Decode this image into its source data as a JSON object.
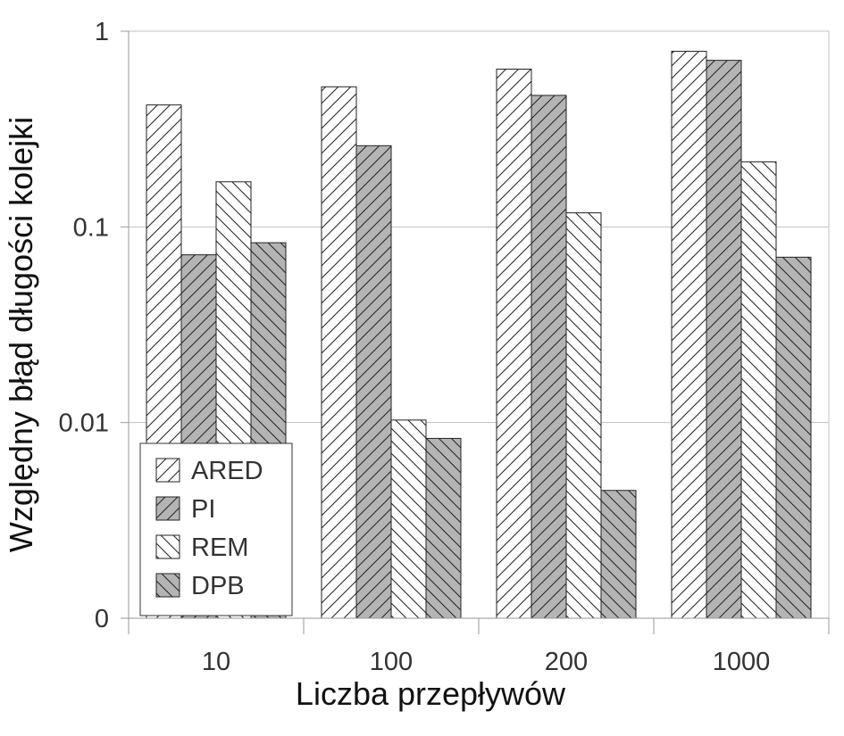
{
  "chart_data": {
    "type": "bar",
    "title": "",
    "xlabel": "Liczba przepływów",
    "ylabel": "Względny błąd długości kolejki",
    "yscale": "log",
    "ylim": [
      0.001,
      1
    ],
    "y_ticks": [
      {
        "value": 0.001,
        "label": "0"
      },
      {
        "value": 0.01,
        "label": "0.01"
      },
      {
        "value": 0.1,
        "label": "0.1"
      },
      {
        "value": 1,
        "label": "1"
      }
    ],
    "grid": true,
    "legend_position": "bottom-left",
    "categories": [
      "10",
      "100",
      "200",
      "1000"
    ],
    "series": [
      {
        "name": "ARED",
        "values": [
          0.42,
          0.52,
          0.64,
          0.79
        ]
      },
      {
        "name": "PI",
        "values": [
          0.072,
          0.26,
          0.47,
          0.71
        ]
      },
      {
        "name": "REM",
        "values": [
          0.17,
          0.0103,
          0.118,
          0.215
        ]
      },
      {
        "name": "DPB",
        "values": [
          0.083,
          0.0083,
          0.0045,
          0.07
        ]
      }
    ]
  },
  "style": {
    "series_fills": [
      "#ffffff",
      "#b4b4b4",
      "#ffffff",
      "#b4b4b4"
    ],
    "series_hatch": [
      "forward",
      "forward",
      "backward",
      "backward"
    ],
    "bar_stroke": "#222222",
    "grid_color": "#c0c0c0",
    "axis_color": "#999999"
  }
}
